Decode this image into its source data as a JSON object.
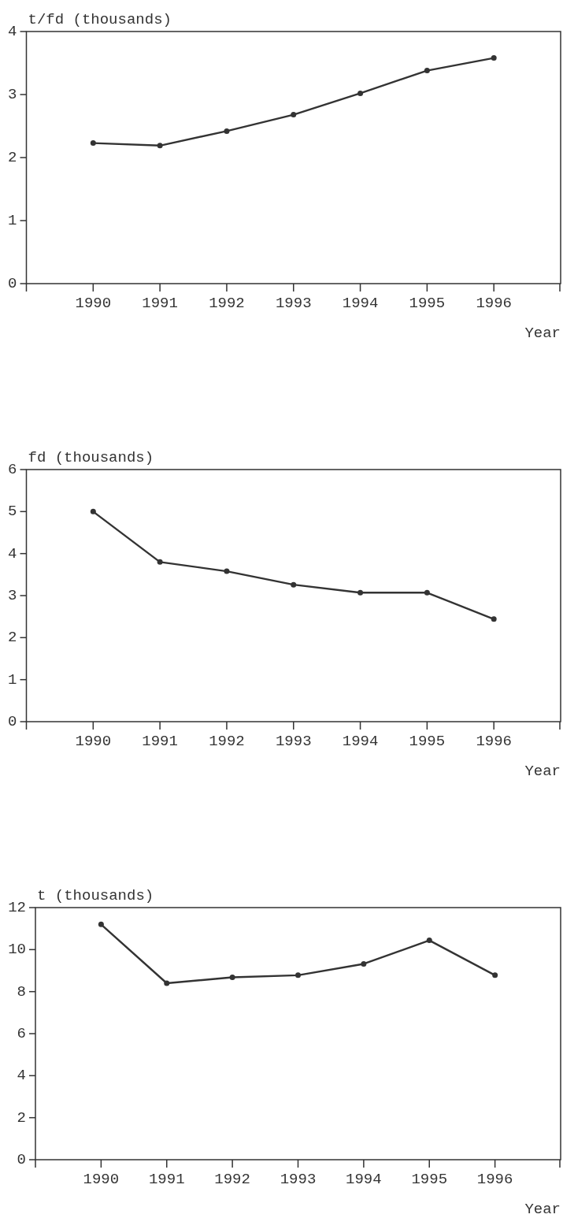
{
  "chart_data": [
    {
      "type": "line",
      "ylabel": "t/fd (thousands)",
      "xlabel": "Year",
      "x": [
        1990,
        1991,
        1992,
        1993,
        1994,
        1995,
        1996
      ],
      "values": [
        2.23,
        2.19,
        2.42,
        2.68,
        3.02,
        3.38,
        3.58
      ],
      "color": "#333333",
      "marker": "circle",
      "xlim": [
        1989,
        1997
      ],
      "xticks": [
        1990,
        1991,
        1992,
        1993,
        1994,
        1995,
        1996
      ],
      "ylim": [
        0,
        4
      ],
      "yticks": [
        0,
        1,
        2,
        3,
        4
      ]
    },
    {
      "type": "line",
      "ylabel": "fd (thousands)",
      "xlabel": "Year",
      "x": [
        1990,
        1991,
        1992,
        1993,
        1994,
        1995,
        1996
      ],
      "values": [
        5.0,
        3.8,
        3.58,
        3.26,
        3.07,
        3.07,
        2.44
      ],
      "color": "#333333",
      "marker": "circle",
      "xlim": [
        1989,
        1997
      ],
      "xticks": [
        1990,
        1991,
        1992,
        1993,
        1994,
        1995,
        1996
      ],
      "ylim": [
        0,
        6
      ],
      "yticks": [
        0,
        1,
        2,
        3,
        4,
        5,
        6
      ]
    },
    {
      "type": "line",
      "ylabel": "t (thousands)",
      "xlabel": "Year",
      "x": [
        1990,
        1991,
        1992,
        1993,
        1994,
        1995,
        1996
      ],
      "values": [
        11.2,
        8.4,
        8.68,
        8.78,
        9.32,
        10.44,
        8.78
      ],
      "color": "#333333",
      "marker": "circle",
      "xlim": [
        1989,
        1997
      ],
      "xticks": [
        1990,
        1991,
        1992,
        1993,
        1994,
        1995,
        1996
      ],
      "ylim": [
        0,
        12
      ],
      "yticks": [
        0,
        2,
        4,
        6,
        8,
        10,
        12
      ]
    }
  ]
}
